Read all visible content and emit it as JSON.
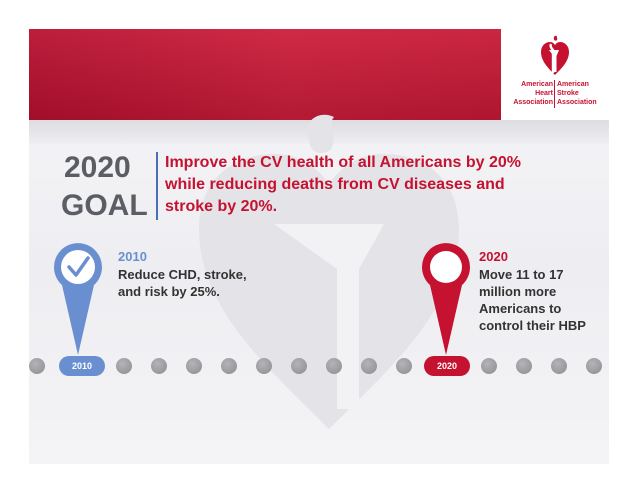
{
  "logo": {
    "left_lines": [
      "American",
      "Heart",
      "Association"
    ],
    "right_lines": [
      "American",
      "Stroke",
      "Association"
    ]
  },
  "goal": {
    "year": "2020",
    "word": "GOAL",
    "statement_lines": [
      "Improve the CV health of all Americans by 20%",
      "while reducing deaths from CV diseases and",
      "stroke by 20%."
    ]
  },
  "milestones": [
    {
      "year": "2010",
      "lines": [
        "Reduce CHD, stroke,",
        "and risk by 25%."
      ],
      "color": "#6a8fd0"
    },
    {
      "year": "2020",
      "lines": [
        "Move 11 to 17",
        "million more",
        "Americans to",
        "control their HBP"
      ],
      "color": "#c41230"
    }
  ],
  "timeline": {
    "start_label": "2010",
    "end_label": "2020"
  },
  "colors": {
    "brand_red": "#c41230",
    "accent_blue": "#6a8fd0",
    "dot_gray": "#9a9a9e"
  }
}
